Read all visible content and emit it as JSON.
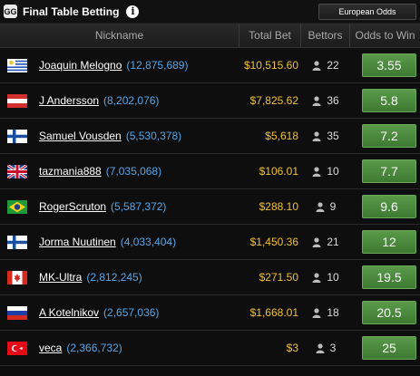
{
  "header": {
    "logo_text": "GG",
    "title": "Final Table Betting",
    "info_icon": "info-icon",
    "odds_format": "European Odds"
  },
  "columns": {
    "nickname": "Nickname",
    "total_bet": "Total Bet",
    "bettors": "Bettors",
    "odds": "Odds to Win"
  },
  "rows": [
    {
      "flag": "uruguay",
      "name": "Joaquin Melogno",
      "chips": "(12,875,689)",
      "total_bet": "$10,515.60",
      "bettors": "22",
      "odds": "3.55"
    },
    {
      "flag": "austria",
      "name": "J Andersson",
      "chips": "(8,202,076)",
      "total_bet": "$7,825.62",
      "bettors": "36",
      "odds": "5.8"
    },
    {
      "flag": "finland",
      "name": "Samuel Vousden",
      "chips": "(5,530,378)",
      "total_bet": "$5,618",
      "bettors": "35",
      "odds": "7.2"
    },
    {
      "flag": "united-kingdom",
      "name": "tazmania888",
      "chips": "(7,035,068)",
      "total_bet": "$106.01",
      "bettors": "10",
      "odds": "7.7"
    },
    {
      "flag": "brazil",
      "name": "RogerScruton",
      "chips": "(5,587,372)",
      "total_bet": "$288.10",
      "bettors": "9",
      "odds": "9.6"
    },
    {
      "flag": "finland",
      "name": "Jorma Nuutinen",
      "chips": "(4,033,404)",
      "total_bet": "$1,450.36",
      "bettors": "21",
      "odds": "12"
    },
    {
      "flag": "canada",
      "name": "MK-Ultra",
      "chips": "(2,812,245)",
      "total_bet": "$271.50",
      "bettors": "10",
      "odds": "19.5"
    },
    {
      "flag": "russia",
      "name": "A Kotelnikov",
      "chips": "(2,657,036)",
      "total_bet": "$1,668.01",
      "bettors": "18",
      "odds": "20.5"
    },
    {
      "flag": "turkey",
      "name": "veca",
      "chips": "(2,366,732)",
      "total_bet": "$3",
      "bettors": "3",
      "odds": "25"
    }
  ],
  "colors": {
    "bet_gold": "#f2c230",
    "chips_blue": "#56a7e8",
    "odds_green": "#4a8a3c"
  }
}
